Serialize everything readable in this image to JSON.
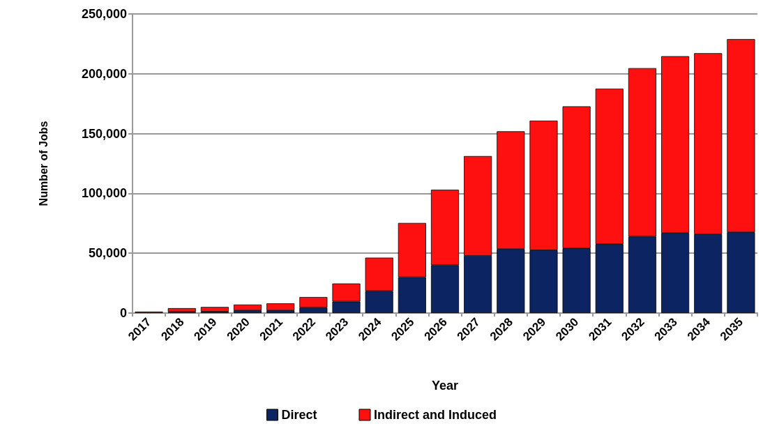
{
  "chart_data": {
    "type": "bar",
    "stacked": true,
    "xlabel": "Year",
    "ylabel": "Number of Jobs",
    "categories": [
      "2017",
      "2018",
      "2019",
      "2020",
      "2021",
      "2022",
      "2023",
      "2024",
      "2025",
      "2026",
      "2027",
      "2028",
      "2029",
      "2030",
      "2031",
      "2032",
      "2033",
      "2034",
      "2035"
    ],
    "series": [
      {
        "name": "Direct",
        "color": "#0c2462",
        "values": [
          null,
          1000,
          1200,
          2200,
          2200,
          4500,
          9600,
          18400,
          30000,
          40000,
          47800,
          53500,
          52500,
          54100,
          57600,
          63900,
          66900,
          65900,
          67500
        ]
      },
      {
        "name": "Indirect and Induced",
        "color": "#ff1010",
        "values": [
          1200,
          3100,
          3900,
          4900,
          5900,
          8900,
          15100,
          27900,
          45300,
          63100,
          83400,
          98400,
          108300,
          118700,
          129900,
          140800,
          147800,
          151300,
          161500
        ]
      }
    ],
    "ylim": [
      0,
      250000
    ],
    "yticks": [
      0,
      {
        "value": 50000,
        "label": "50,000"
      },
      {
        "value": 100000,
        "label": "100,000"
      },
      {
        "value": 150000,
        "label": "150,000"
      },
      {
        "value": 200000,
        "label": "200,000"
      },
      {
        "value": 250000,
        "label": "250,000"
      }
    ],
    "grid": "y",
    "legend": "bottom"
  }
}
